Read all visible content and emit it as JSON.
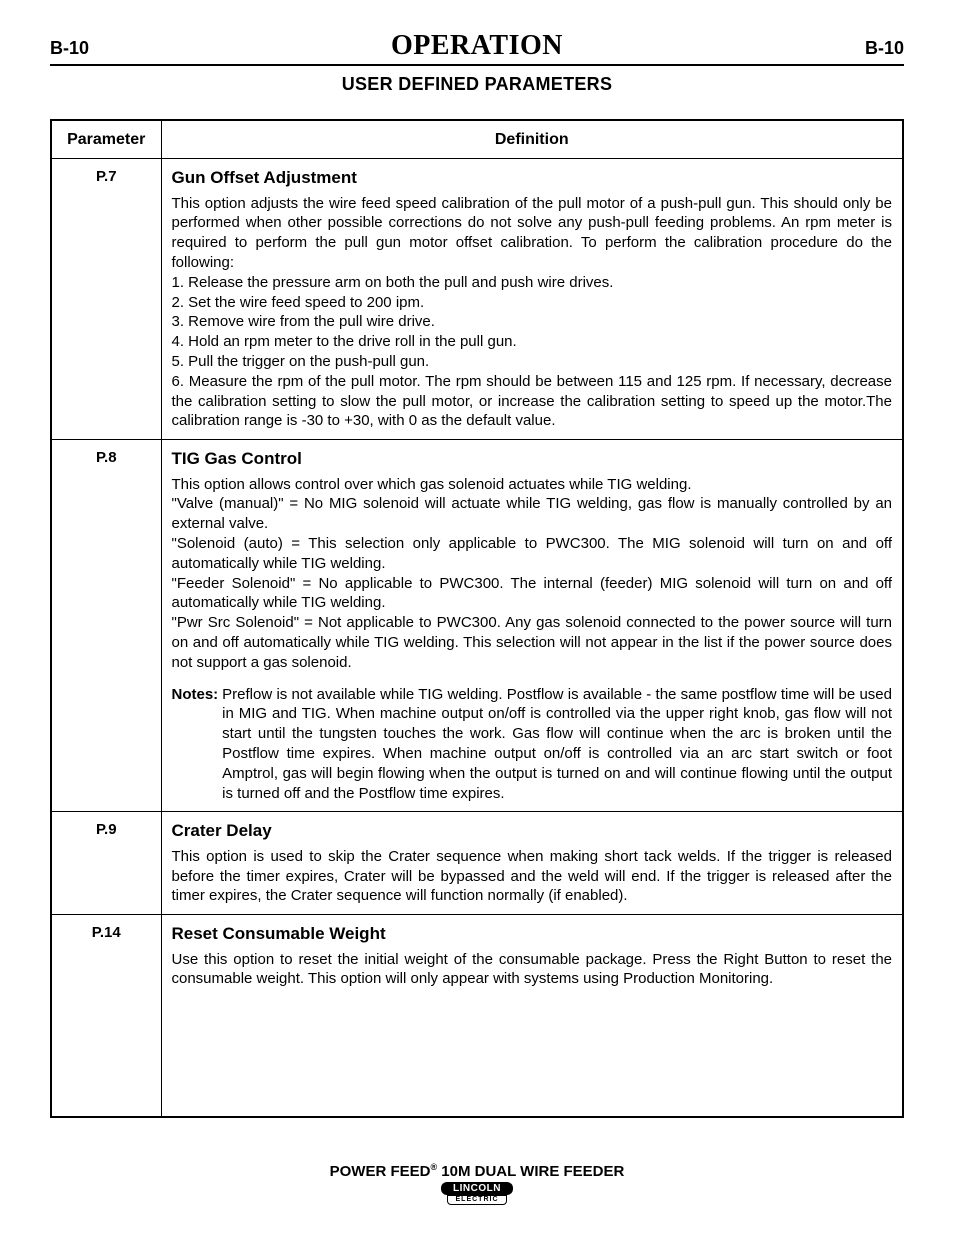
{
  "header": {
    "page_num_left": "B-10",
    "page_num_right": "B-10",
    "title": "OPERATION",
    "subtitle": "USER DEFINED PARAMETERS"
  },
  "table": {
    "columns": {
      "param": "Parameter",
      "def": "Definition"
    },
    "rows": [
      {
        "id": "P.7",
        "title": "Gun Offset Adjustment",
        "intro": "This option adjusts the wire feed speed calibration of the pull motor of a push-pull gun. This should only be performed when other possible corrections do not solve any push-pull feeding problems. An rpm meter is required to perform the pull gun motor offset calibration. To perform the calibration procedure do the following:",
        "steps": [
          "1. Release the pressure arm on both the pull and push wire drives.",
          "2. Set the wire feed speed to 200 ipm.",
          "3. Remove wire from the pull wire drive.",
          "4. Hold an rpm meter to the drive roll in the pull gun.",
          "5. Pull the trigger on the push-pull gun.",
          "6. Measure the rpm of the pull motor.  The rpm should be between 115 and 125 rpm.  If necessary, decrease the calibration setting to slow the pull motor, or increase the calibration setting to speed up the motor.The calibration range is -30 to +30, with 0 as the default value."
        ]
      },
      {
        "id": "P.8",
        "title": "TIG Gas Control",
        "paras": [
          "This option allows control over which gas solenoid actuates while TIG welding.",
          "\"Valve (manual)\" = No MIG solenoid will actuate while TIG welding, gas flow is manually controlled by an external valve.",
          "\"Solenoid (auto) = This selection only applicable to PWC300. The MIG solenoid will turn on and off automatically while TIG welding.",
          "\"Feeder Solenoid\" = No applicable to PWC300. The internal (feeder) MIG solenoid will turn on and off automatically while TIG welding.",
          "\"Pwr Src Solenoid\" = Not applicable to PWC300. Any gas solenoid connected to the power source will turn on and off automatically while TIG welding. This selection will not appear in the list if the power source does not support a gas solenoid."
        ],
        "notes_label": "Notes:",
        "notes": "Preflow is not available while TIG welding. Postflow is available - the same postflow time will be used in MIG and TIG. When machine output on/off is controlled via the upper right knob, gas flow will not start until the tungsten touches the work. Gas flow will continue when the arc is broken until the Postflow time expires. When machine output on/off is controlled via an arc start switch or foot Amptrol, gas will begin flowing when the output is turned on and will continue flowing until the output is turned off and the Postflow time expires."
      },
      {
        "id": "P.9",
        "title": "Crater Delay",
        "paras": [
          "This option is used to skip the Crater sequence when making short tack welds. If the trigger is released before the timer expires, Crater will be bypassed and the weld will end. If the trigger is released after the timer expires, the Crater sequence will function normally (if enabled)."
        ]
      },
      {
        "id": "P.14",
        "title": "Reset Consumable Weight",
        "paras": [
          "Use this option to reset the initial weight of the consumable package. Press the Right Button to reset the consumable weight.  This option will only appear with systems using Production Monitoring."
        ]
      }
    ]
  },
  "footer": {
    "product_pre": "POWER FEED",
    "reg": "®",
    "product_post": " 10M DUAL WIRE FEEDER",
    "logo_top": "LINCOLN",
    "logo_bot": "ELECTRIC"
  }
}
